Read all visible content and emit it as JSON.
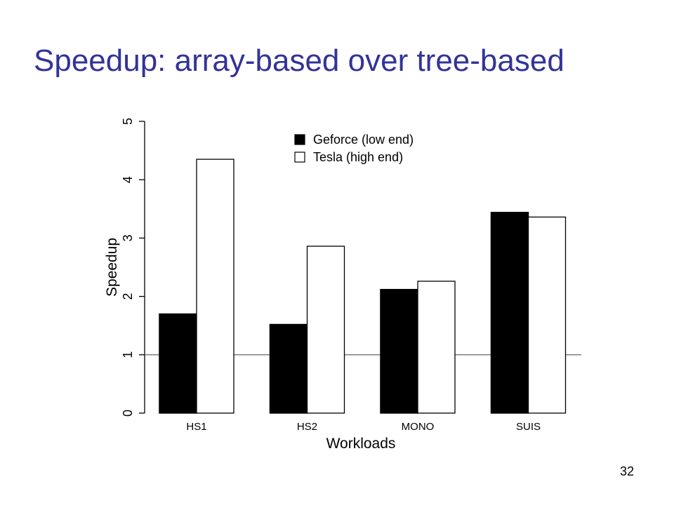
{
  "slide": {
    "title": "Speedup: array-based over tree-based",
    "page_number": "32"
  },
  "colors": {
    "title": "#333399",
    "geforce": "#000000",
    "tesla": "#ffffff",
    "outline": "#000000",
    "reference_line": "#555555"
  },
  "chart_data": {
    "type": "bar",
    "title": "",
    "xlabel": "Workloads",
    "ylabel": "Speedup",
    "categories": [
      "HS1",
      "HS2",
      "MONO",
      "SUIS"
    ],
    "series": [
      {
        "name": "Geforce (low end)",
        "values": [
          1.7,
          1.52,
          2.12,
          3.44
        ],
        "fill": "#000000"
      },
      {
        "name": "Tesla (high end)",
        "values": [
          4.35,
          2.86,
          2.26,
          3.36
        ],
        "fill": "#ffffff"
      }
    ],
    "ylim": [
      0,
      5
    ],
    "yticks": [
      "0",
      "1",
      "2",
      "3",
      "4",
      "5"
    ],
    "reference_line_y": 1,
    "legend_position": "top",
    "grid": false
  }
}
